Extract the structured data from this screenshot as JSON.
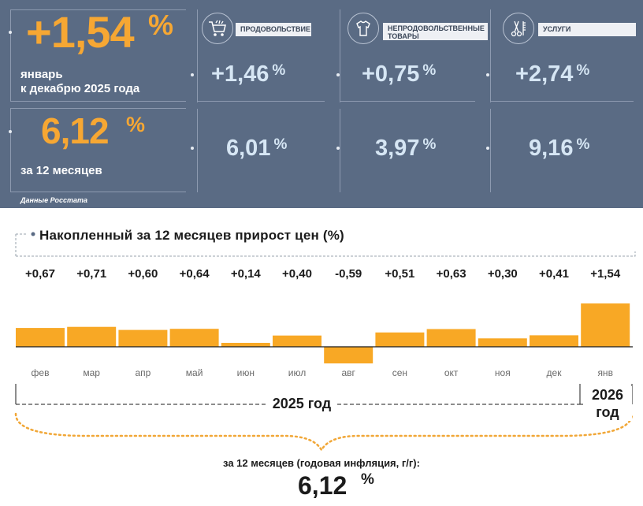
{
  "header": {
    "month_change": {
      "value": "+1,54",
      "unit": "%",
      "caption_line1": "январь",
      "caption_line2": "к декабрю 2025 года"
    },
    "annual": {
      "value": "6,12",
      "unit": "%",
      "caption": "за 12 месяцев"
    },
    "source": "Данные Росстата",
    "categories": [
      {
        "label_lines": [
          "ПРОДОВОЛЬСТВИЕ"
        ],
        "icon": "shopping-cart-icon",
        "month": "+1,46",
        "annual": "6,01",
        "unit": "%"
      },
      {
        "label_lines": [
          "НЕПРОДОВОЛЬСТВЕННЫЕ",
          "ТОВАРЫ"
        ],
        "icon": "clothing-icon",
        "month": "+0,75",
        "annual": "3,97",
        "unit": "%"
      },
      {
        "label_lines": [
          "УСЛУГИ"
        ],
        "icon": "scissors-comb-icon",
        "month": "+2,74",
        "annual": "9,16",
        "unit": "%"
      }
    ]
  },
  "chart_data": {
    "type": "bar",
    "title": "Накопленный за 12 месяцев прирост цен (%)",
    "categories": [
      "фев",
      "мар",
      "апр",
      "май",
      "июн",
      "июл",
      "авг",
      "сен",
      "окт",
      "ноя",
      "дек",
      "янв"
    ],
    "values": [
      0.67,
      0.71,
      0.6,
      0.64,
      0.14,
      0.4,
      -0.59,
      0.51,
      0.63,
      0.3,
      0.41,
      1.54
    ],
    "value_labels": [
      "+0,67",
      "+0,71",
      "+0,60",
      "+0,64",
      "+0,14",
      "+0,40",
      "-0,59",
      "+0,51",
      "+0,63",
      "+0,30",
      "+0,41",
      "+1,54"
    ],
    "year_groups": [
      {
        "label": "2025 год",
        "months": 11
      },
      {
        "label_line1": "2026",
        "label_line2": "год",
        "months": 1
      }
    ],
    "bar_color": "#f8a825",
    "grid": false
  },
  "footer": {
    "caption": "за 12 месяцев (годовая инфляция, г/г):",
    "value": "6,12",
    "unit": "%"
  },
  "colors": {
    "panel": "#5a6b84",
    "accent": "#f6a733",
    "cell_text": "#d6e6f4"
  }
}
